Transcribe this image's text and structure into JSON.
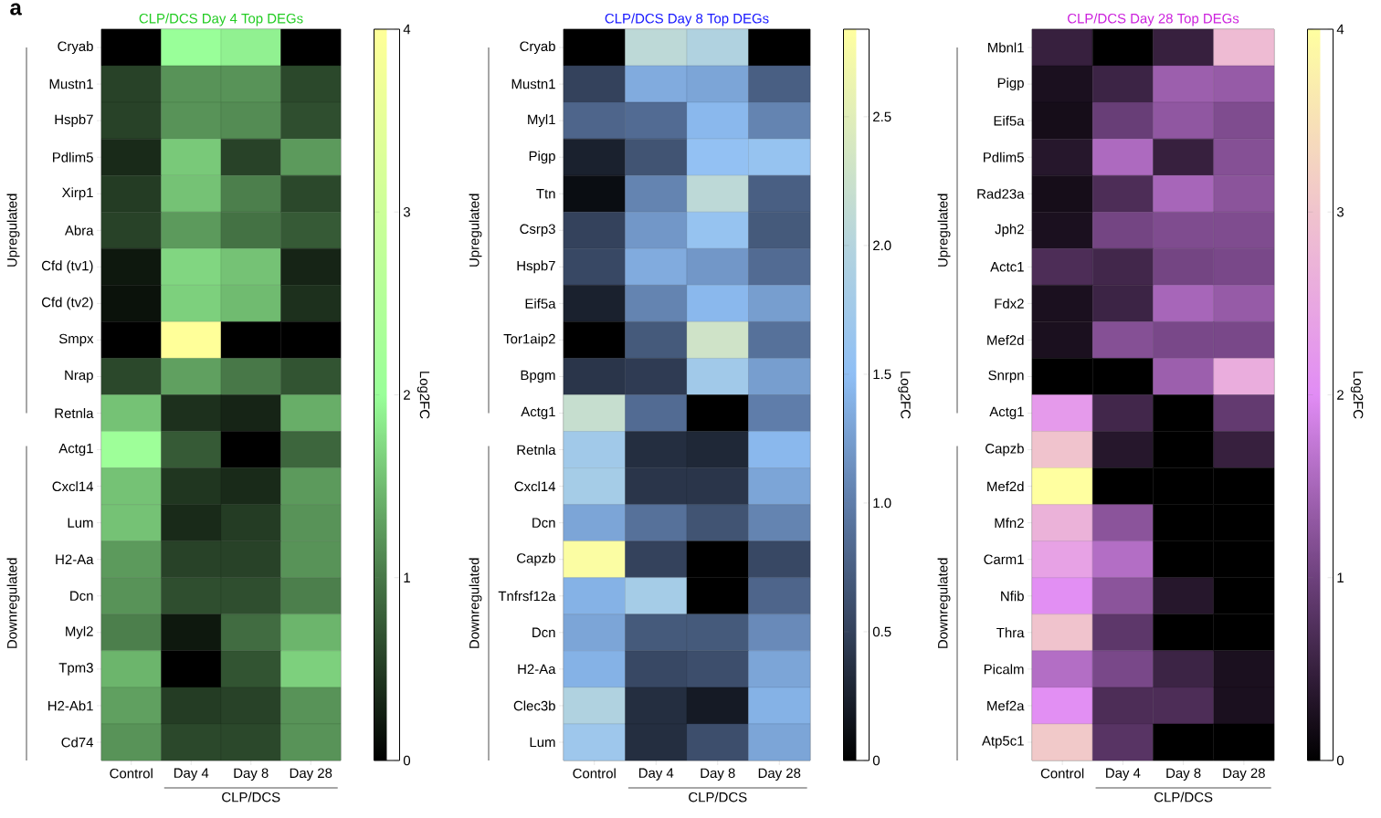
{
  "chart_data": [
    {
      "type": "heatmap",
      "title": "CLP/DCS Day 4 Top DEGs",
      "xlabel": "CLP/DCS",
      "clabel": "Log2FC",
      "categories": [
        "Control",
        "Day 4",
        "Day 8",
        "Day 28"
      ],
      "y_categories": [
        "Cryab",
        "Mustn1",
        "Hspb7",
        "Pdlim5",
        "Xirp1",
        "Abra",
        "Cfd (tv1)",
        "Cfd (tv2)",
        "Smpx",
        "Nrap",
        "Retnla",
        "Actg1",
        "Cxcl14",
        "Lum",
        "H2-Aa",
        "Dcn",
        "Myl2",
        "Tpm3",
        "H2-Ab1",
        "Cd74"
      ],
      "cells": [
        [
          0,
          2.0,
          1.9,
          0
        ],
        [
          0.55,
          1.2,
          1.2,
          0.6
        ],
        [
          0.55,
          1.2,
          1.15,
          0.65
        ],
        [
          0.35,
          1.6,
          0.55,
          1.25
        ],
        [
          0.5,
          1.55,
          1.05,
          0.6
        ],
        [
          0.55,
          1.25,
          0.95,
          0.75
        ],
        [
          0.2,
          1.7,
          1.55,
          0.3
        ],
        [
          0.15,
          1.65,
          1.5,
          0.4
        ],
        [
          0,
          4.0,
          0,
          0
        ],
        [
          0.6,
          1.3,
          1.0,
          0.7
        ],
        [
          1.55,
          0.4,
          0.3,
          1.4
        ],
        [
          2.1,
          0.75,
          0,
          0.85
        ],
        [
          1.55,
          0.45,
          0.35,
          1.25
        ],
        [
          1.55,
          0.35,
          0.5,
          1.2
        ],
        [
          1.25,
          0.55,
          0.55,
          1.2
        ],
        [
          1.2,
          0.65,
          0.65,
          1.05
        ],
        [
          1.05,
          0.2,
          0.9,
          1.45
        ],
        [
          1.45,
          0,
          0.7,
          1.65
        ],
        [
          1.3,
          0.5,
          0.55,
          1.2
        ],
        [
          1.2,
          0.6,
          0.6,
          1.2
        ]
      ],
      "clim": [
        0,
        4
      ],
      "cticks": [
        0,
        1,
        2,
        3,
        4
      ],
      "annotations": [
        "Upregulated",
        "Downregulated",
        "a"
      ]
    },
    {
      "type": "heatmap",
      "title": "CLP/DCS Day 8 Top DEGs",
      "xlabel": "CLP/DCS",
      "clabel": "Log2FC",
      "categories": [
        "Control",
        "Day 4",
        "Day 8",
        "Day 28"
      ],
      "y_categories": [
        "Cryab",
        "Mustn1",
        "Myl1",
        "Pigp",
        "Ttn",
        "Csrp3",
        "Hspb7",
        "Eif5a",
        "Tor1aip2",
        "Bpgm",
        "Actg1",
        "Retnla",
        "Cxcl14",
        "Dcn",
        "Capzb",
        "Tnfrsf12a",
        "Dcn",
        "H2-Aa",
        "Clec3b",
        "Lum"
      ],
      "cells": [
        [
          0,
          2.1,
          1.95,
          0
        ],
        [
          0.5,
          1.35,
          1.3,
          0.75
        ],
        [
          0.8,
          0.85,
          1.45,
          1.05
        ],
        [
          0.25,
          0.65,
          1.55,
          1.6
        ],
        [
          0.1,
          1.05,
          2.1,
          0.75
        ],
        [
          0.5,
          1.2,
          1.6,
          0.7
        ],
        [
          0.55,
          1.35,
          1.2,
          0.85
        ],
        [
          0.25,
          1.05,
          1.45,
          1.25
        ],
        [
          0,
          0.7,
          2.3,
          0.9
        ],
        [
          0.4,
          0.45,
          1.75,
          1.25
        ],
        [
          2.2,
          0.85,
          0,
          1.0
        ],
        [
          1.75,
          0.35,
          0.3,
          1.45
        ],
        [
          1.8,
          0.4,
          0.4,
          1.3
        ],
        [
          1.3,
          0.9,
          0.65,
          1.05
        ],
        [
          2.8,
          0.5,
          0,
          0.55
        ],
        [
          1.4,
          1.8,
          0,
          0.8
        ],
        [
          1.3,
          0.7,
          0.7,
          1.1
        ],
        [
          1.4,
          0.55,
          0.6,
          1.3
        ],
        [
          1.95,
          0.35,
          0.2,
          1.4
        ],
        [
          1.7,
          0.35,
          0.6,
          1.3
        ]
      ],
      "clim": [
        0,
        2.84
      ],
      "cticks": [
        0,
        0.5,
        {
          "value": 1,
          "label": "1.0"
        },
        1.5,
        {
          "value": 2,
          "label": "2.0"
        },
        2.5
      ],
      "annotations": [
        "Upregulated",
        "Downregulated"
      ]
    },
    {
      "type": "heatmap",
      "title": "CLP/DCS Day 28 Top DEGs",
      "xlabel": "CLP/DCS",
      "clabel": "Log2FC",
      "categories": [
        "Control",
        "Day 4",
        "Day 8",
        "Day 28"
      ],
      "y_categories": [
        "Mbnl1",
        "Pigp",
        "Eif5a",
        "Pdlim5",
        "Rad23a",
        "Jph2",
        "Actc1",
        "Fdx2",
        "Mef2d",
        "Snrpn",
        "Actg1",
        "Capzb",
        "Mef2d",
        "Mfn2",
        "Carm1",
        "Nfib",
        "Thra",
        "Picalm",
        "Mef2a",
        "Atp5c1"
      ],
      "cells": [
        [
          0.5,
          0,
          0.5,
          2.85
        ],
        [
          0.25,
          0.55,
          1.4,
          1.35
        ],
        [
          0.2,
          0.95,
          1.3,
          1.15
        ],
        [
          0.35,
          1.55,
          0.5,
          1.2
        ],
        [
          0.2,
          0.7,
          1.5,
          1.25
        ],
        [
          0.25,
          1.05,
          1.15,
          1.15
        ],
        [
          0.7,
          0.6,
          1.05,
          1.1
        ],
        [
          0.25,
          0.55,
          1.5,
          1.35
        ],
        [
          0.25,
          1.2,
          1.1,
          1.1
        ],
        [
          0,
          0,
          1.4,
          2.6
        ],
        [
          2.25,
          0.6,
          0,
          0.9
        ],
        [
          3.0,
          0.35,
          0,
          0.5
        ],
        [
          4.0,
          0,
          0,
          0
        ],
        [
          2.7,
          1.25,
          0,
          0
        ],
        [
          2.4,
          1.6,
          0,
          0
        ],
        [
          2.05,
          1.25,
          0.35,
          0
        ],
        [
          3.0,
          0.85,
          0,
          0
        ],
        [
          1.6,
          1.1,
          0.55,
          0.25
        ],
        [
          2.05,
          0.7,
          0.7,
          0.25
        ],
        [
          3.1,
          0.8,
          0,
          0
        ]
      ],
      "clim": [
        0,
        4
      ],
      "cticks": [
        0,
        1,
        2,
        3,
        4
      ],
      "annotations": [
        "Upregulated",
        "Downregulated"
      ]
    }
  ]
}
